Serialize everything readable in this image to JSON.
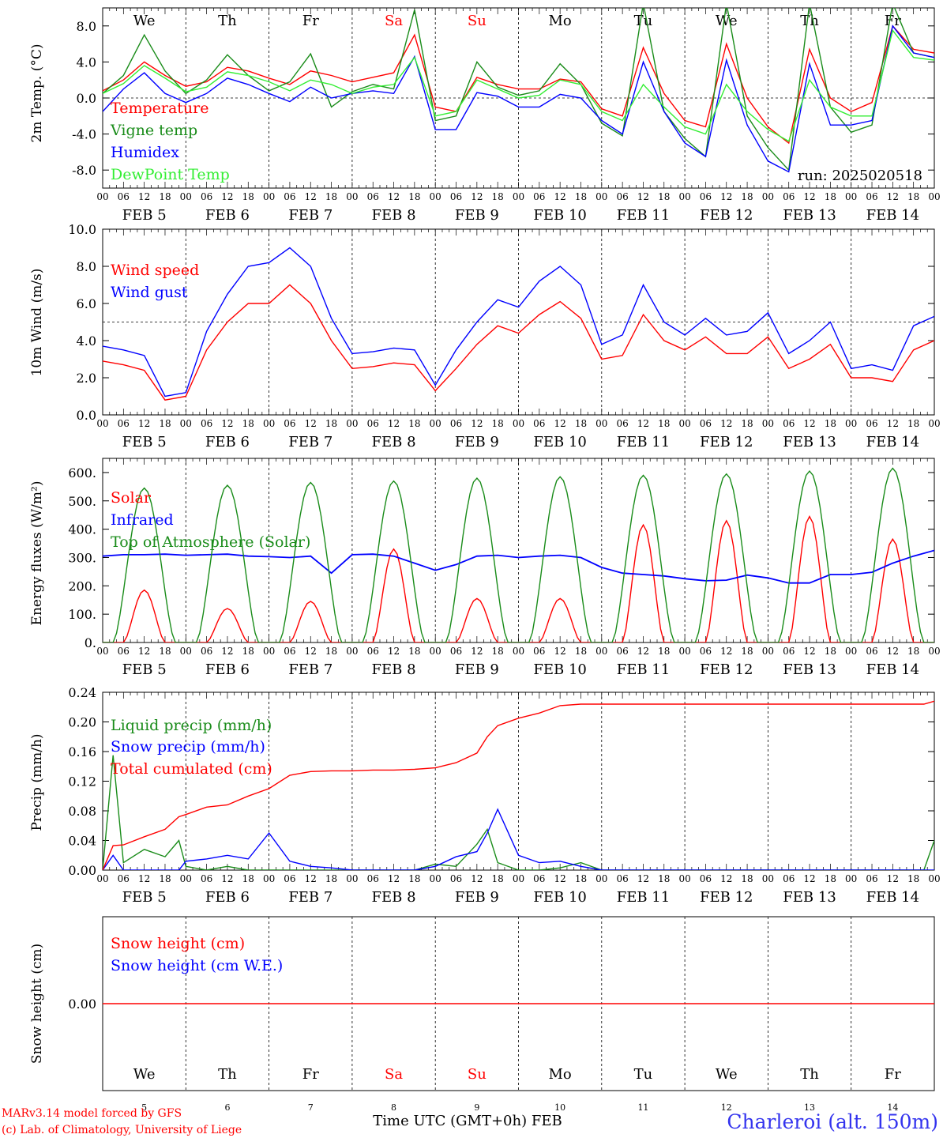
{
  "footer": {
    "model_line": "MARv3.14 model forced by GFS",
    "credit_line": "(c) Lab. of Climatology, University of Liege",
    "xaxis_title": "Time UTC (GMT+0h) FEB",
    "station": "Charleroi (alt. 150m)"
  },
  "colors": {
    "red": "#ff0000",
    "green": "#1a8c1a",
    "blue": "#0000ff",
    "lightgreen": "#33ee33",
    "weekend": "#ff0000",
    "ink": "#000000"
  },
  "days": {
    "abbrev": [
      "We",
      "Th",
      "Fr",
      "Sa",
      "Su",
      "Mo",
      "Tu",
      "We",
      "Th",
      "Fr"
    ],
    "weekend": [
      false,
      false,
      false,
      true,
      true,
      false,
      false,
      false,
      false,
      false
    ],
    "date_labels": [
      "FEB  5",
      "FEB  6",
      "FEB  7",
      "FEB  8",
      "FEB  9",
      "FEB 10",
      "FEB 11",
      "FEB 12",
      "FEB 13",
      "FEB 14"
    ],
    "day_numbers": [
      "5",
      "6",
      "7",
      "8",
      "9",
      "10",
      "11",
      "12",
      "13",
      "14"
    ],
    "hour_labels": [
      "00",
      "06",
      "12",
      "18"
    ],
    "end_hour_label": "00"
  },
  "chart_data": [
    {
      "type": "line",
      "ylabel": "2m Temp. (°C)",
      "ylim": [
        -10,
        10
      ],
      "yticks": [
        "-8.0",
        "-4.0",
        "0.0",
        "4.0",
        "8.0"
      ],
      "ytick_values": [
        -8,
        -4,
        0,
        4,
        8
      ],
      "ref_line": 0,
      "annotation": "run: 2025020518",
      "x_hours": [
        0,
        6,
        12,
        18,
        24,
        30,
        36,
        42,
        48,
        54,
        60,
        66,
        72,
        78,
        84,
        90,
        96,
        102,
        108,
        114,
        120,
        126,
        132,
        138,
        144,
        150,
        156,
        162,
        168,
        174,
        180,
        186,
        192,
        198,
        204,
        210,
        216,
        222,
        228,
        234,
        240
      ],
      "series": [
        {
          "name": "Temperature",
          "color": "red",
          "values": [
            0.8,
            2.0,
            4.0,
            2.5,
            1.3,
            1.8,
            3.4,
            3.0,
            2.2,
            1.5,
            3.0,
            2.5,
            1.8,
            2.3,
            2.8,
            7.0,
            -1.0,
            -1.5,
            2.3,
            1.5,
            1.0,
            1.0,
            2.1,
            1.8,
            -1.2,
            -2.0,
            5.6,
            0.5,
            -2.5,
            -3.2,
            6.0,
            0.0,
            -3.2,
            -5.0,
            5.4,
            0.0,
            -1.5,
            -0.5,
            8.0,
            5.4,
            5.0
          ]
        },
        {
          "name": "Vigne temp",
          "color": "green",
          "values": [
            0.5,
            2.5,
            7.0,
            3.0,
            0.5,
            2.0,
            4.8,
            2.5,
            0.8,
            1.8,
            4.9,
            -1.0,
            0.7,
            1.5,
            1.0,
            9.8,
            -2.5,
            -2.0,
            4.0,
            1.2,
            0.3,
            0.8,
            3.8,
            1.5,
            -2.8,
            -4.2,
            10.5,
            -1.5,
            -4.5,
            -6.5,
            10.5,
            -2.0,
            -5.5,
            -8.0,
            10.5,
            -1.0,
            -3.8,
            -3.0,
            10.5,
            5.0,
            4.5
          ]
        },
        {
          "name": "Humidex",
          "color": "blue",
          "values": [
            -1.5,
            1.0,
            2.8,
            0.5,
            -0.5,
            0.5,
            2.2,
            1.5,
            0.5,
            -0.4,
            1.2,
            0.0,
            0.5,
            0.8,
            0.5,
            4.6,
            -3.5,
            -3.5,
            0.6,
            0.2,
            -1.0,
            -1.0,
            0.4,
            0.0,
            -2.5,
            -4.0,
            4.0,
            -1.5,
            -5.0,
            -6.5,
            4.2,
            -3.0,
            -7.0,
            -8.2,
            3.8,
            -3.0,
            -3.0,
            -2.5,
            8.0,
            5.0,
            4.5
          ]
        },
        {
          "name": "DewPoint Temp",
          "color": "lightgreen",
          "values": [
            0.5,
            1.6,
            3.6,
            2.2,
            0.7,
            1.2,
            2.9,
            2.5,
            1.8,
            0.8,
            2.0,
            1.5,
            0.5,
            1.2,
            1.5,
            4.5,
            -2.0,
            -1.5,
            2.0,
            1.0,
            0.0,
            0.3,
            2.0,
            1.5,
            -1.5,
            -2.5,
            1.5,
            -1.0,
            -3.2,
            -4.0,
            1.5,
            -1.5,
            -3.5,
            -4.8,
            2.0,
            -1.0,
            -2.0,
            -2.0,
            7.5,
            4.5,
            4.2
          ]
        }
      ]
    },
    {
      "type": "line",
      "ylabel": "10m Wind (m/s)",
      "ylim": [
        0,
        10
      ],
      "yticks": [
        "0.0",
        "2.0",
        "4.0",
        "6.0",
        "8.0",
        "10.0"
      ],
      "ytick_values": [
        0,
        2,
        4,
        6,
        8,
        10
      ],
      "ref_line": 5,
      "x_hours": [
        0,
        6,
        12,
        18,
        24,
        30,
        36,
        42,
        48,
        54,
        60,
        66,
        72,
        78,
        84,
        90,
        96,
        102,
        108,
        114,
        120,
        126,
        132,
        138,
        144,
        150,
        156,
        162,
        168,
        174,
        180,
        186,
        192,
        198,
        204,
        210,
        216,
        222,
        228,
        234,
        240
      ],
      "series": [
        {
          "name": "Wind speed",
          "color": "red",
          "values": [
            2.9,
            2.7,
            2.4,
            0.8,
            1.0,
            3.5,
            5.0,
            6.0,
            6.0,
            7.0,
            6.0,
            4.0,
            2.5,
            2.6,
            2.8,
            2.7,
            1.3,
            2.5,
            3.8,
            4.8,
            4.4,
            5.4,
            6.1,
            5.2,
            3.0,
            3.2,
            5.4,
            4.0,
            3.5,
            4.2,
            3.3,
            3.3,
            4.2,
            2.5,
            3.0,
            3.8,
            2.0,
            2.0,
            1.8,
            3.5,
            4.0
          ]
        },
        {
          "name": "Wind gust",
          "color": "blue",
          "values": [
            3.7,
            3.5,
            3.2,
            1.0,
            1.2,
            4.5,
            6.5,
            8.0,
            8.2,
            9.0,
            8.0,
            5.2,
            3.3,
            3.4,
            3.6,
            3.5,
            1.6,
            3.5,
            5.0,
            6.2,
            5.8,
            7.2,
            8.0,
            7.0,
            3.8,
            4.3,
            7.0,
            5.0,
            4.3,
            5.2,
            4.3,
            4.5,
            5.5,
            3.3,
            4.0,
            5.0,
            2.5,
            2.7,
            2.4,
            4.8,
            5.3
          ]
        }
      ]
    },
    {
      "type": "line",
      "ylabel": "Energy fluxes (W/m²)",
      "ylim": [
        0,
        650
      ],
      "yticks": [
        "0.",
        "100.",
        "200.",
        "300.",
        "400.",
        "500.",
        "600."
      ],
      "ytick_values": [
        0,
        100,
        200,
        300,
        400,
        500,
        600
      ],
      "day_peaks": {
        "Solar": [
          185,
          120,
          145,
          330,
          155,
          155,
          415,
          430,
          445,
          365
        ],
        "Top of Atmosphere (Solar)": [
          545,
          555,
          565,
          570,
          580,
          585,
          590,
          595,
          605,
          615
        ]
      },
      "series": [
        {
          "name": "Solar",
          "color": "red",
          "values": [
            0,
            0,
            185,
            0,
            0,
            0,
            120,
            0,
            0,
            0,
            145,
            0,
            0,
            0,
            330,
            0,
            0,
            0,
            155,
            0,
            0,
            0,
            155,
            0,
            0,
            0,
            415,
            0,
            0,
            0,
            430,
            0,
            0,
            0,
            445,
            0,
            0,
            0,
            365,
            0,
            0
          ]
        },
        {
          "name": "Infrared",
          "color": "blue",
          "values": [
            305,
            310,
            310,
            312,
            308,
            310,
            312,
            305,
            303,
            300,
            305,
            245,
            310,
            312,
            305,
            280,
            255,
            275,
            305,
            308,
            300,
            305,
            308,
            300,
            265,
            245,
            240,
            235,
            225,
            218,
            220,
            238,
            228,
            210,
            210,
            240,
            240,
            248,
            280,
            305,
            325
          ]
        },
        {
          "name": "Top of Atmosphere (Solar)",
          "color": "green",
          "values": [
            0,
            0,
            545,
            0,
            0,
            0,
            555,
            0,
            0,
            0,
            565,
            0,
            0,
            0,
            570,
            0,
            0,
            0,
            580,
            0,
            0,
            0,
            585,
            0,
            0,
            0,
            590,
            0,
            0,
            0,
            595,
            0,
            0,
            0,
            605,
            0,
            0,
            0,
            615,
            0,
            0
          ]
        }
      ]
    },
    {
      "type": "line",
      "ylabel": "Precip (mm/h)",
      "ylim": [
        0,
        0.24
      ],
      "yticks": [
        "0.00",
        "0.04",
        "0.08",
        "0.12",
        "0.16",
        "0.20",
        "0.24"
      ],
      "ytick_values": [
        0,
        0.04,
        0.08,
        0.12,
        0.16,
        0.2,
        0.24
      ],
      "x_hours": [
        0,
        3,
        6,
        12,
        18,
        22,
        24,
        30,
        36,
        42,
        48,
        54,
        60,
        66,
        72,
        78,
        84,
        90,
        96,
        102,
        108,
        111,
        114,
        120,
        126,
        132,
        138,
        144,
        150,
        156,
        162,
        168,
        174,
        180,
        186,
        192,
        198,
        204,
        210,
        216,
        222,
        228,
        234,
        237,
        240
      ],
      "series": [
        {
          "name": "Liquid precip (mm/h)",
          "color": "green",
          "values": [
            0,
            0.155,
            0.01,
            0.028,
            0.018,
            0.04,
            0.005,
            0,
            0.005,
            0,
            0,
            0,
            0,
            0,
            0,
            0,
            0,
            0,
            0.008,
            0.005,
            0.035,
            0.055,
            0.01,
            0,
            0,
            0.003,
            0.01,
            0,
            0,
            0,
            0,
            0,
            0,
            0,
            0,
            0,
            0,
            0,
            0,
            0,
            0,
            0,
            0,
            0,
            0.04
          ]
        },
        {
          "name": "Snow precip (mm/h)",
          "color": "blue",
          "values": [
            0,
            0.02,
            0,
            0,
            0,
            0,
            0.012,
            0.015,
            0.02,
            0.015,
            0.05,
            0.012,
            0.005,
            0.003,
            0,
            0,
            0,
            0,
            0.005,
            0.018,
            0.025,
            0.05,
            0.082,
            0.02,
            0.01,
            0.012,
            0.005,
            0,
            0,
            0,
            0,
            0,
            0,
            0,
            0,
            0,
            0,
            0,
            0,
            0,
            0,
            0,
            0,
            0,
            0
          ]
        },
        {
          "name": "Total cumulated (cm)",
          "color": "red",
          "values": [
            0,
            0.033,
            0.034,
            0.045,
            0.055,
            0.072,
            0.075,
            0.085,
            0.088,
            0.1,
            0.11,
            0.128,
            0.133,
            0.134,
            0.134,
            0.135,
            0.135,
            0.136,
            0.138,
            0.145,
            0.158,
            0.18,
            0.195,
            0.205,
            0.212,
            0.222,
            0.224,
            0.224,
            0.224,
            0.224,
            0.224,
            0.224,
            0.224,
            0.224,
            0.224,
            0.224,
            0.224,
            0.224,
            0.224,
            0.224,
            0.224,
            0.224,
            0.224,
            0.224,
            0.228
          ]
        }
      ]
    },
    {
      "type": "line",
      "ylabel": "Snow height (cm)",
      "ylim": [
        -1,
        1
      ],
      "yticks": [
        "0.00"
      ],
      "ytick_values": [
        0
      ],
      "series": [
        {
          "name": "Snow height (cm)",
          "color": "red",
          "values": [
            0,
            0
          ]
        },
        {
          "name": "Snow height (cm W.E.)",
          "color": "blue",
          "values": []
        }
      ]
    }
  ]
}
